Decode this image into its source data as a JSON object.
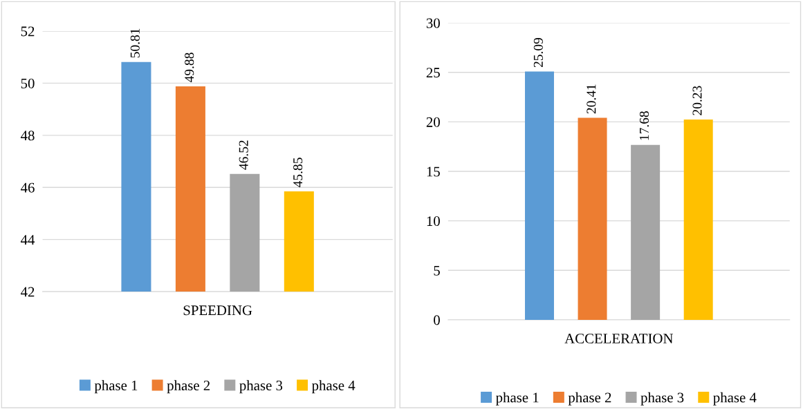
{
  "chart_data": [
    {
      "type": "bar",
      "categories": [
        "SPEEDING"
      ],
      "ylim": [
        42,
        52
      ],
      "yticks": [
        42,
        44,
        46,
        48,
        50,
        52
      ],
      "grid": "y",
      "legend": "bottom",
      "data_labels": true,
      "series": [
        {
          "name": "phase 1",
          "color": "#5b9bd5",
          "values": [
            50.81
          ]
        },
        {
          "name": "phase 2",
          "color": "#ed7d31",
          "values": [
            49.88
          ]
        },
        {
          "name": "phase 3",
          "color": "#a5a5a5",
          "values": [
            46.52
          ]
        },
        {
          "name": "phase 4",
          "color": "#ffc000",
          "values": [
            45.85
          ]
        }
      ]
    },
    {
      "type": "bar",
      "categories": [
        "ACCELERATION"
      ],
      "ylim": [
        0,
        30
      ],
      "yticks": [
        0,
        5,
        10,
        15,
        20,
        25,
        30
      ],
      "grid": "y",
      "legend": "bottom",
      "data_labels": true,
      "series": [
        {
          "name": "phase 1",
          "color": "#5b9bd5",
          "values": [
            25.09
          ]
        },
        {
          "name": "phase 2",
          "color": "#ed7d31",
          "values": [
            20.41
          ]
        },
        {
          "name": "phase 3",
          "color": "#a5a5a5",
          "values": [
            17.68
          ]
        },
        {
          "name": "phase 4",
          "color": "#ffc000",
          "values": [
            20.23
          ]
        }
      ]
    }
  ]
}
